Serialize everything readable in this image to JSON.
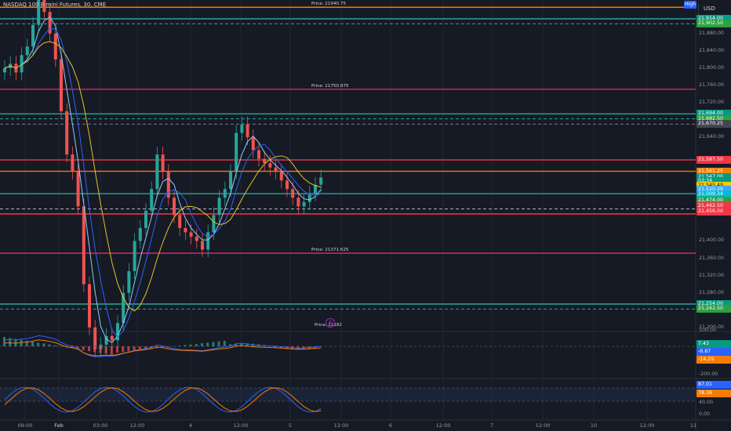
{
  "symbol": {
    "title": "NASDAQ 100 E-mini Futures, 30, CME"
  },
  "toolbar": {
    "high_label": "High",
    "currency_label": "USD"
  },
  "price_axis": {
    "labels": [
      "21,880.00",
      "21,840.00",
      "21,800.00",
      "21,760.00",
      "21,720.00",
      "21,640.00",
      "21,400.00",
      "21,360.00",
      "21,320.00",
      "21,280.00",
      "21,200.00"
    ],
    "tags": [
      {
        "text": "21,914.00",
        "price": 21914.0,
        "color": "#089981"
      },
      {
        "text": "21,902.50",
        "price": 21902.5,
        "color": "#2ea043"
      },
      {
        "text": "21,694.00",
        "price": 21694.0,
        "color": "#089981"
      },
      {
        "text": "21,682.50",
        "price": 21682.5,
        "color": "#2ea043"
      },
      {
        "text": "21,670.25",
        "price": 21670.25,
        "color": "#434651"
      },
      {
        "text": "21,587.50",
        "price": 21587.5,
        "color": "#f23645"
      },
      {
        "text": "21,561.25",
        "price": 21561.25,
        "color": "#f57c00"
      },
      {
        "text": "21,547.00",
        "price": 21547.0,
        "color": "#089981"
      },
      {
        "text": "03:34",
        "price": 21538.0,
        "color": "#089981"
      },
      {
        "text": "21,545.49",
        "price": 21528.0,
        "color": "#e8d000"
      },
      {
        "text": "21,520.29",
        "price": 21518.0,
        "color": "#42a5f5"
      },
      {
        "text": "21,509.34",
        "price": 21508.0,
        "color": "#00bcd4"
      },
      {
        "text": "21,474.00",
        "price": 21494.0,
        "color": "#2ea043"
      },
      {
        "text": "21,462.50",
        "price": 21481.0,
        "color": "#f23645"
      },
      {
        "text": "21,456.00",
        "price": 21468.0,
        "color": "#f23645"
      },
      {
        "text": "21,254.00",
        "price": 21254.0,
        "color": "#089981"
      },
      {
        "text": "21,242.50",
        "price": 21242.5,
        "color": "#2ea043"
      }
    ]
  },
  "horizontal_lines": [
    {
      "price": 21940.75,
      "color": "#f57c00",
      "note": "Price: 21940.75"
    },
    {
      "price": 21914.0,
      "color": "#26a69a",
      "note": ""
    },
    {
      "price": 21902.5,
      "color": "#26a69a",
      "note": "",
      "dashed": true
    },
    {
      "price": 21750.875,
      "color": "#e91e63",
      "note": "Price: 21750.875"
    },
    {
      "price": 21694.0,
      "color": "#26a69a",
      "note": ""
    },
    {
      "price": 21682.5,
      "color": "#26a69a",
      "note": "",
      "dashed": true
    },
    {
      "price": 21670.25,
      "color": "#787b86",
      "note": "",
      "dashed": true
    },
    {
      "price": 21587.5,
      "color": "#f23645",
      "note": ""
    },
    {
      "price": 21561.25,
      "color": "#f57c00",
      "note": ""
    },
    {
      "price": 21509.34,
      "color": "#26a69a",
      "note": ""
    },
    {
      "price": 21462.5,
      "color": "#f23645",
      "note": ""
    },
    {
      "price": 21474.0,
      "color": "#b2b5be",
      "note": "",
      "dashed": true
    },
    {
      "price": 21371.625,
      "color": "#e91e63",
      "note": "Price: 21371.625"
    },
    {
      "price": 21254.0,
      "color": "#26a69a",
      "note": ""
    },
    {
      "price": 21242.5,
      "color": "#26a69a",
      "note": "",
      "dashed": true
    }
  ],
  "bottom_note": "Price: 21182",
  "macd": {
    "axis_labels": [
      "100.00",
      "-200.00"
    ],
    "tags": [
      {
        "text": "7.43",
        "color": "#089981"
      },
      {
        "text": "-6.87",
        "color": "#2962ff"
      },
      {
        "text": "-14.29",
        "color": "#f57c00"
      }
    ]
  },
  "stoch": {
    "axis_labels": [
      "40.00",
      "0.00"
    ],
    "tags": [
      {
        "text": "87.01",
        "color": "#2962ff"
      },
      {
        "text": "78.38",
        "color": "#f57c00"
      }
    ]
  },
  "time_axis": [
    "09:00",
    "Feb",
    "03:00",
    "12:00",
    "4",
    "12:00",
    "5",
    "12:00",
    "6",
    "12:00",
    "7",
    "12:00",
    "10",
    "12:00",
    "11"
  ]
}
